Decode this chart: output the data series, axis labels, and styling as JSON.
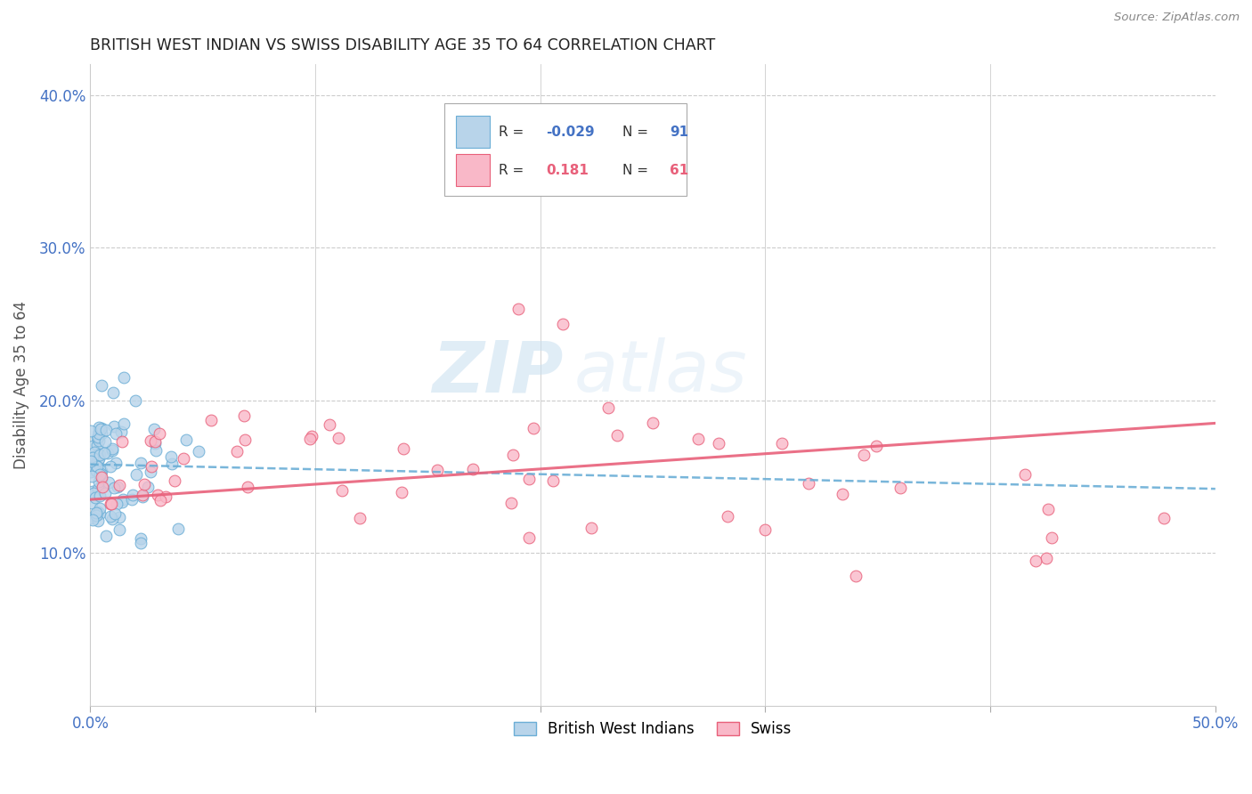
{
  "title": "BRITISH WEST INDIAN VS SWISS DISABILITY AGE 35 TO 64 CORRELATION CHART",
  "source": "Source: ZipAtlas.com",
  "ylabel": "Disability Age 35 to 64",
  "xlim": [
    0.0,
    0.5
  ],
  "ylim": [
    0.0,
    0.42
  ],
  "xticks": [
    0.0,
    0.1,
    0.2,
    0.3,
    0.4,
    0.5
  ],
  "yticks": [
    0.1,
    0.2,
    0.3,
    0.4
  ],
  "xtick_labels": [
    "0.0%",
    "",
    "",
    "",
    "",
    "50.0%"
  ],
  "ytick_labels": [
    "10.0%",
    "20.0%",
    "30.0%",
    "40.0%"
  ],
  "legend_label1": "British West Indians",
  "legend_label2": "Swiss",
  "r1": "-0.029",
  "n1": "91",
  "r2": "0.181",
  "n2": "61",
  "color_bwi_fill": "#b8d4ea",
  "color_bwi_edge": "#6baed6",
  "color_swiss_fill": "#f9b8c8",
  "color_swiss_edge": "#e8607a",
  "color_bwi_line": "#6baed6",
  "color_swiss_line": "#e8607a",
  "watermark_zip": "ZIP",
  "watermark_atlas": "atlas",
  "bwi_trend_x0": 0.0,
  "bwi_trend_y0": 0.158,
  "bwi_trend_x1": 0.5,
  "bwi_trend_y1": 0.142,
  "swiss_trend_x0": 0.0,
  "swiss_trend_y0": 0.135,
  "swiss_trend_x1": 0.5,
  "swiss_trend_y1": 0.185
}
